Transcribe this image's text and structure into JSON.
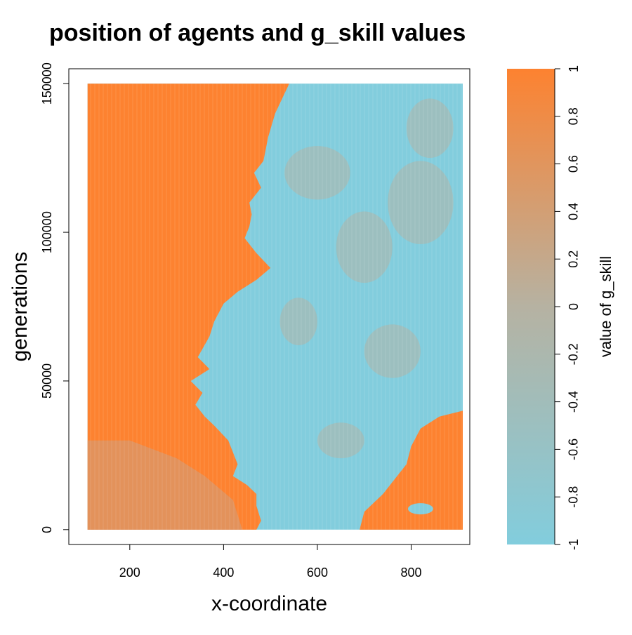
{
  "chart_data": {
    "type": "heatmap",
    "title": "position of agents and g_skill values",
    "xlabel": "x-coordinate",
    "ylabel": "generations",
    "xlim": [
      70,
      925
    ],
    "ylim": [
      -5000,
      155000
    ],
    "x_ticks": [
      200,
      400,
      600,
      800
    ],
    "y_ticks": [
      0,
      50000,
      100000,
      150000
    ],
    "x_tick_labels": [
      "200",
      "400",
      "600",
      "800"
    ],
    "y_tick_labels": [
      "0",
      "50000",
      "100000",
      "150000"
    ],
    "data_x_range": [
      110,
      910
    ],
    "data_y_range": [
      0,
      150000
    ],
    "regions": [
      {
        "label": "g_skill ≈ 1 (left)",
        "value": 1,
        "boundary": [
          [
            540,
            150000
          ],
          [
            525,
            145000
          ],
          [
            510,
            140000
          ],
          [
            495,
            132000
          ],
          [
            485,
            124000
          ],
          [
            465,
            120000
          ],
          [
            480,
            115000
          ],
          [
            455,
            110000
          ],
          [
            460,
            106000
          ],
          [
            455,
            102000
          ],
          [
            445,
            98000
          ],
          [
            470,
            93000
          ],
          [
            500,
            88000
          ],
          [
            470,
            84000
          ],
          [
            430,
            80000
          ],
          [
            400,
            76000
          ],
          [
            380,
            70000
          ],
          [
            370,
            65000
          ],
          [
            345,
            58000
          ],
          [
            370,
            54000
          ],
          [
            330,
            50000
          ],
          [
            355,
            46000
          ],
          [
            340,
            42000
          ],
          [
            360,
            38000
          ],
          [
            380,
            35000
          ],
          [
            410,
            30000
          ],
          [
            430,
            22000
          ],
          [
            420,
            18000
          ],
          [
            450,
            15000
          ],
          [
            470,
            12000
          ],
          [
            470,
            8000
          ],
          [
            480,
            3000
          ],
          [
            470,
            0
          ]
        ]
      },
      {
        "label": "g_skill ≈ 1 (bottom right)",
        "value": 1,
        "boundary_polygon": [
          [
            690,
            0
          ],
          [
            700,
            6000
          ],
          [
            740,
            12000
          ],
          [
            770,
            18000
          ],
          [
            790,
            22000
          ],
          [
            800,
            28000
          ],
          [
            820,
            34000
          ],
          [
            860,
            38000
          ],
          [
            910,
            40000
          ],
          [
            910,
            0
          ]
        ]
      }
    ],
    "legend": {
      "title": "value of g_skill",
      "range": [
        -1,
        1
      ],
      "ticks": [
        1,
        0.8,
        0.6,
        0.4,
        0.2,
        0,
        -0.2,
        -0.4,
        -0.6,
        -0.8,
        -1
      ],
      "tick_labels": [
        "1",
        "0.8",
        "0.6",
        "0.4",
        "0.2",
        "0",
        "-0.2",
        "-0.4",
        "-0.6",
        "-0.8",
        "-1"
      ],
      "placement": "right"
    },
    "colors": {
      "high": "#fd8230",
      "low": "#82cddd",
      "mid": "#b6b2a2"
    },
    "grid": false
  }
}
